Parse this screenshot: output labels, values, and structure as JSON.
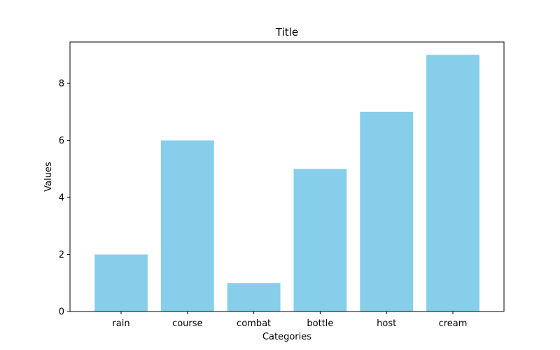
{
  "chart_data": {
    "type": "bar",
    "title": "Title",
    "xlabel": "Categories",
    "ylabel": "Values",
    "categories": [
      "rain",
      "course",
      "combat",
      "bottle",
      "host",
      "cream"
    ],
    "values": [
      2,
      6,
      1,
      5,
      7,
      9
    ],
    "ylim": [
      0,
      9.45
    ],
    "yticks": [
      "0",
      "2",
      "4",
      "6",
      "8"
    ],
    "bar_color": "#87ceeb",
    "grid": false,
    "legend": "none"
  }
}
